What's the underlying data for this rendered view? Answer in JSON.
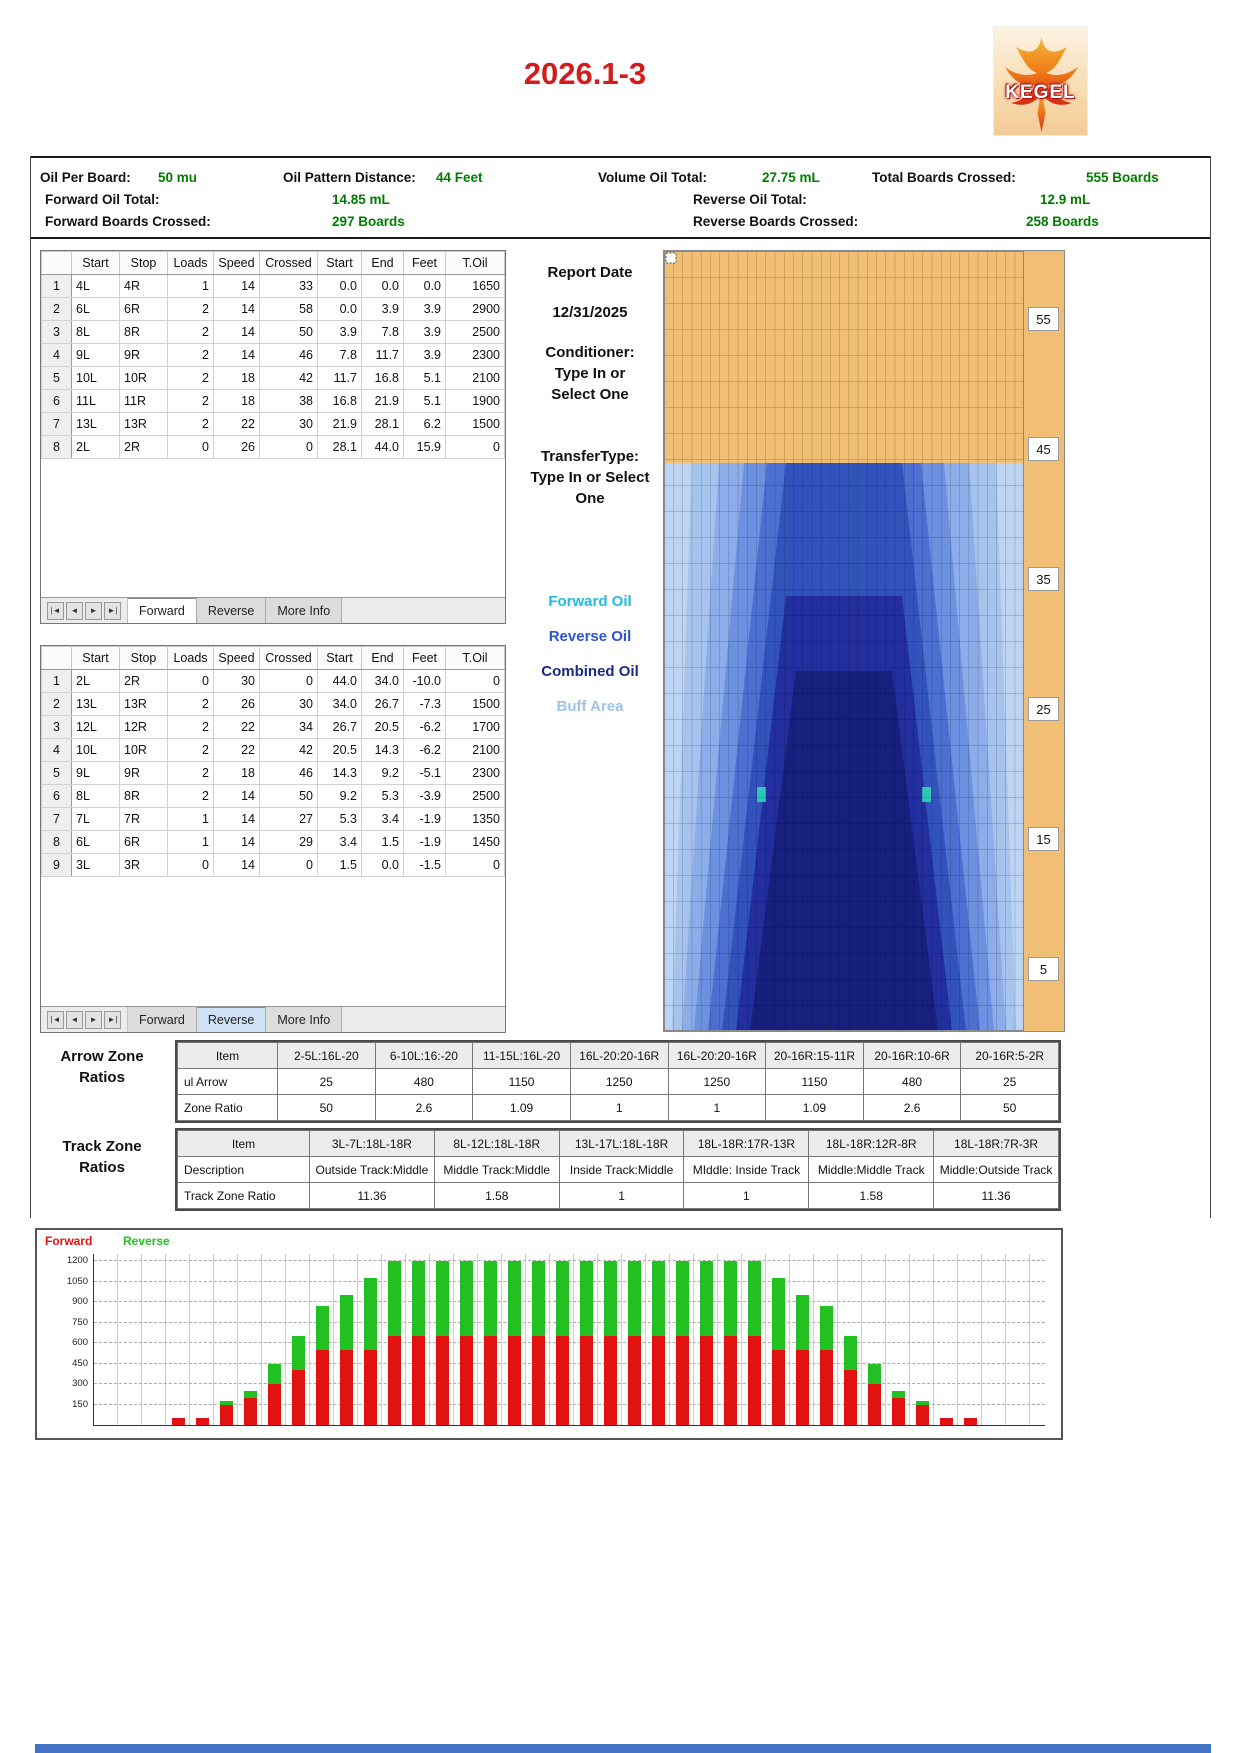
{
  "title": "2026.1-3",
  "logo_text": "KEGEL",
  "colors": {
    "title_red": "#d51c1c",
    "value_green": "#007d00",
    "forward_bar_red": "#e11212",
    "reverse_bar_green": "#22c122",
    "lane_orange": "#f0bf75"
  },
  "summary": {
    "oil_per_board_label": "Oil Per Board:",
    "oil_per_board": "50 mu",
    "oil_pattern_distance_label": "Oil Pattern Distance:",
    "oil_pattern_distance": "44 Feet",
    "volume_oil_total_label": "Volume Oil Total:",
    "volume_oil_total": "27.75 mL",
    "total_boards_crossed_label": "Total Boards Crossed:",
    "total_boards_crossed": "555 Boards",
    "forward_oil_total_label": "Forward Oil Total:",
    "forward_oil_total": "14.85 mL",
    "reverse_oil_total_label": "Reverse Oil Total:",
    "reverse_oil_total": "12.9 mL",
    "forward_boards_crossed_label": "Forward Boards Crossed:",
    "forward_boards_crossed": "297 Boards",
    "reverse_boards_crossed_label": "Reverse Boards Crossed:",
    "reverse_boards_crossed": "258 Boards"
  },
  "table_nav_buttons": [
    "|◄",
    "◄",
    "►",
    "►|"
  ],
  "forward_table": {
    "columns": [
      "",
      "Start",
      "Stop",
      "Loads",
      "Speed",
      "Crossed",
      "Start",
      "End",
      "Feet",
      "T.Oil"
    ],
    "rows": [
      [
        "1",
        "4L",
        "4R",
        "1",
        "14",
        "33",
        "0.0",
        "0.0",
        "0.0",
        "1650"
      ],
      [
        "2",
        "6L",
        "6R",
        "2",
        "14",
        "58",
        "0.0",
        "3.9",
        "3.9",
        "2900"
      ],
      [
        "3",
        "8L",
        "8R",
        "2",
        "14",
        "50",
        "3.9",
        "7.8",
        "3.9",
        "2500"
      ],
      [
        "4",
        "9L",
        "9R",
        "2",
        "14",
        "46",
        "7.8",
        "11.7",
        "3.9",
        "2300"
      ],
      [
        "5",
        "10L",
        "10R",
        "2",
        "18",
        "42",
        "11.7",
        "16.8",
        "5.1",
        "2100"
      ],
      [
        "6",
        "11L",
        "11R",
        "2",
        "18",
        "38",
        "16.8",
        "21.9",
        "5.1",
        "1900"
      ],
      [
        "7",
        "13L",
        "13R",
        "2",
        "22",
        "30",
        "21.9",
        "28.1",
        "6.2",
        "1500"
      ],
      [
        "8",
        "2L",
        "2R",
        "0",
        "26",
        "0",
        "28.1",
        "44.0",
        "15.9",
        "0"
      ]
    ],
    "tabs": [
      "Forward",
      "Reverse",
      "More Info"
    ],
    "active_tab": "Forward"
  },
  "reverse_table": {
    "columns": [
      "",
      "Start",
      "Stop",
      "Loads",
      "Speed",
      "Crossed",
      "Start",
      "End",
      "Feet",
      "T.Oil"
    ],
    "rows": [
      [
        "1",
        "2L",
        "2R",
        "0",
        "30",
        "0",
        "44.0",
        "34.0",
        "-10.0",
        "0"
      ],
      [
        "2",
        "13L",
        "13R",
        "2",
        "26",
        "30",
        "34.0",
        "26.7",
        "-7.3",
        "1500"
      ],
      [
        "3",
        "12L",
        "12R",
        "2",
        "22",
        "34",
        "26.7",
        "20.5",
        "-6.2",
        "1700"
      ],
      [
        "4",
        "10L",
        "10R",
        "2",
        "22",
        "42",
        "20.5",
        "14.3",
        "-6.2",
        "2100"
      ],
      [
        "5",
        "9L",
        "9R",
        "2",
        "18",
        "46",
        "14.3",
        "9.2",
        "-5.1",
        "2300"
      ],
      [
        "6",
        "8L",
        "8R",
        "2",
        "14",
        "50",
        "9.2",
        "5.3",
        "-3.9",
        "2500"
      ],
      [
        "7",
        "7L",
        "7R",
        "1",
        "14",
        "27",
        "5.3",
        "3.4",
        "-1.9",
        "1350"
      ],
      [
        "8",
        "6L",
        "6R",
        "1",
        "14",
        "29",
        "3.4",
        "1.5",
        "-1.9",
        "1450"
      ],
      [
        "9",
        "3L",
        "3R",
        "0",
        "14",
        "0",
        "1.5",
        "0.0",
        "-1.5",
        "0"
      ]
    ],
    "tabs": [
      "Forward",
      "Reverse",
      "More Info"
    ],
    "active_tab": "Reverse"
  },
  "info": {
    "report_date_label": "Report Date",
    "report_date": "12/31/2025",
    "conditioner_label": "Conditioner:",
    "conditioner_value": "Type In or Select One",
    "transfer_label": "TransferType:",
    "transfer_value": "Type In or Select One",
    "legend": [
      {
        "label": "Forward Oil",
        "color": "#1ebde0"
      },
      {
        "label": "Reverse Oil",
        "color": "#2f55cf"
      },
      {
        "label": "Combined Oil",
        "color": "#1a2a86"
      },
      {
        "label": "Buff Area",
        "color": "#9dc3e8"
      }
    ]
  },
  "lane": {
    "distance_markers": [
      "55",
      "45",
      "35",
      "25",
      "15",
      "5"
    ]
  },
  "arrow_zone": {
    "heading": "Arrow Zone Ratios",
    "columns": [
      "Item",
      "2-5L:16L-20",
      "6-10L:16:-20",
      "11-15L:16L-20",
      "16L-20:20-16R",
      "16L-20:20-16R",
      "20-16R:15-11R",
      "20-16R:10-6R",
      "20-16R:5-2R"
    ],
    "rows": [
      [
        "ul Arrow",
        "25",
        "480",
        "1150",
        "1250",
        "1250",
        "1150",
        "480",
        "25"
      ],
      [
        "Zone Ratio",
        "50",
        "2.6",
        "1.09",
        "1",
        "1",
        "1.09",
        "2.6",
        "50"
      ]
    ]
  },
  "track_zone": {
    "heading": "Track Zone Ratios",
    "columns": [
      "Item",
      "3L-7L:18L-18R",
      "8L-12L:18L-18R",
      "13L-17L:18L-18R",
      "18L-18R:17R-13R",
      "18L-18R:12R-8R",
      "18L-18R:7R-3R"
    ],
    "rows": [
      [
        "Description",
        "Outside Track:Middle",
        "Middle Track:Middle",
        "Inside Track:Middle",
        "MIddle: Inside Track",
        "Middle:Middle Track",
        "Middle:Outside Track"
      ],
      [
        "Track Zone Ratio",
        "11.36",
        "1.58",
        "1",
        "1",
        "1.58",
        "11.36"
      ]
    ]
  },
  "chart_data": [
    {
      "type": "bar",
      "stacked": true,
      "title": "",
      "x_axis_labels_visible": false,
      "x_unit": "board",
      "series": [
        {
          "name": "Forward",
          "color": "#e11212",
          "values": [
            0,
            0,
            0,
            50,
            50,
            150,
            200,
            300,
            400,
            550,
            550,
            550,
            650,
            650,
            650,
            650,
            650,
            650,
            650,
            650,
            650,
            650,
            650,
            650,
            650,
            650,
            650,
            650,
            550,
            550,
            550,
            400,
            300,
            200,
            150,
            50,
            50,
            0,
            0
          ]
        },
        {
          "name": "Reverse",
          "color": "#22c122",
          "values": [
            0,
            0,
            0,
            0,
            0,
            25,
            50,
            150,
            250,
            325,
            400,
            525,
            550,
            550,
            550,
            550,
            550,
            550,
            550,
            550,
            550,
            550,
            550,
            550,
            550,
            550,
            550,
            550,
            525,
            400,
            325,
            250,
            150,
            50,
            25,
            0,
            0,
            0,
            0
          ]
        }
      ],
      "ylim": [
        0,
        1260
      ],
      "yticks": [
        150,
        300,
        450,
        600,
        750,
        900,
        1050,
        1200
      ],
      "legend_position": "top-left",
      "grid": "dashed"
    },
    {
      "type": "heatmap",
      "title": "Lane oil pattern map",
      "distance_markers": [
        55,
        45,
        35,
        25,
        15,
        5
      ],
      "pattern_end_feet": 44,
      "zones": [
        "Forward Oil",
        "Reverse Oil",
        "Combined Oil",
        "Buff Area"
      ]
    }
  ]
}
